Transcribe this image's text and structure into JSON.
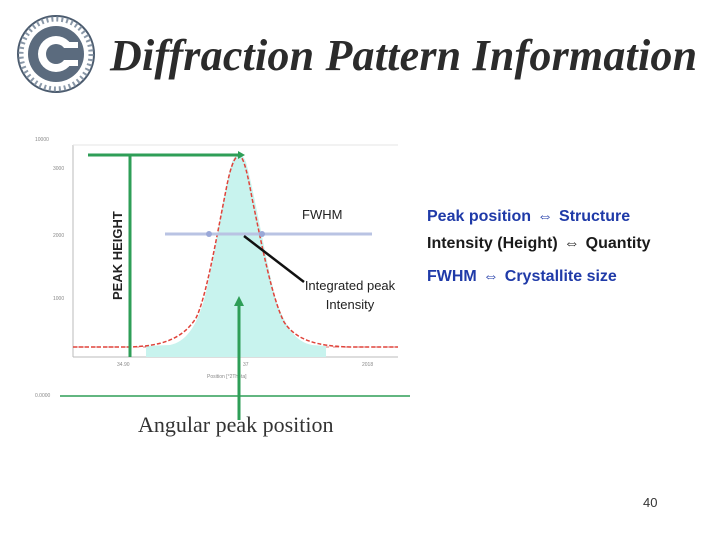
{
  "title": "Diffraction Pattern Information",
  "labels": {
    "peak_height": "PEAK HEIGHT",
    "fwhm": "FWHM",
    "integrated_line1": "Integrated peak",
    "integrated_line2": "Intensity",
    "angular": "Angular peak position"
  },
  "relations": [
    {
      "left": "Peak position",
      "arrow": "⇔",
      "right": "Structure"
    },
    {
      "left": "Intensity (Height)",
      "arrow": "⇔",
      "right": "Quantity"
    },
    {
      "left": "FWHM",
      "arrow": "⇔",
      "right": "Crystallite size"
    }
  ],
  "page_number": "40",
  "colors": {
    "peak_fill": "#c8f3ee",
    "curve": "#e0433a",
    "marker_green": "#2e9e57",
    "fwhm_line": "#b9c3e3",
    "relation_blue": "#1f3aa8"
  }
}
